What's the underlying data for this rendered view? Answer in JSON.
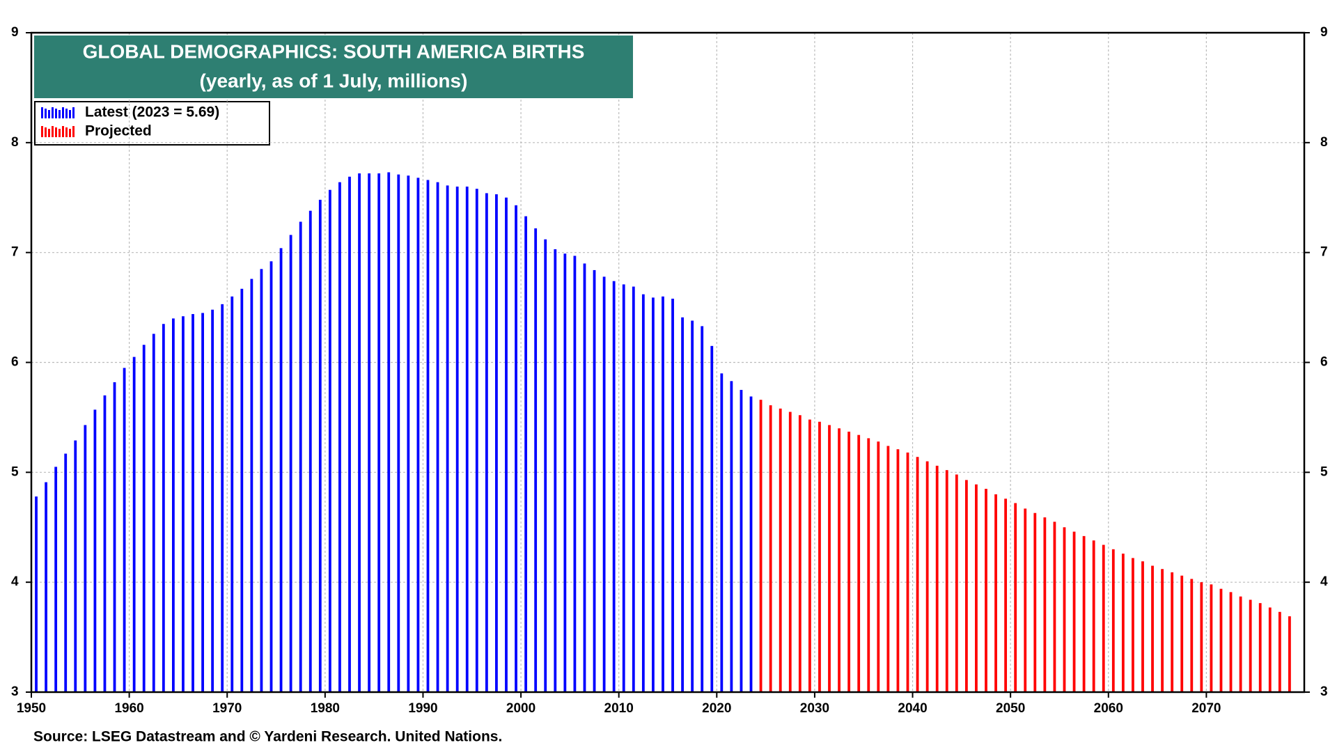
{
  "chart_data": {
    "type": "bar",
    "title": "GLOBAL DEMOGRAPHICS: SOUTH AMERICA BIRTHS",
    "subtitle": "(yearly, as of 1 July, millions)",
    "source": "Source: LSEG Datastream and © Yardeni Research. United Nations.",
    "x": [
      1950,
      1951,
      1952,
      1953,
      1954,
      1955,
      1956,
      1957,
      1958,
      1959,
      1960,
      1961,
      1962,
      1963,
      1964,
      1965,
      1966,
      1967,
      1968,
      1969,
      1970,
      1971,
      1972,
      1973,
      1974,
      1975,
      1976,
      1977,
      1978,
      1979,
      1980,
      1981,
      1982,
      1983,
      1984,
      1985,
      1986,
      1987,
      1988,
      1989,
      1990,
      1991,
      1992,
      1993,
      1994,
      1995,
      1996,
      1997,
      1998,
      1999,
      2000,
      2001,
      2002,
      2003,
      2004,
      2005,
      2006,
      2007,
      2008,
      2009,
      2010,
      2011,
      2012,
      2013,
      2014,
      2015,
      2016,
      2017,
      2018,
      2019,
      2020,
      2021,
      2022,
      2023,
      2024,
      2025,
      2026,
      2027,
      2028,
      2029,
      2030,
      2031,
      2032,
      2033,
      2034,
      2035,
      2036,
      2037,
      2038,
      2039,
      2040,
      2041,
      2042,
      2043,
      2044,
      2045,
      2046,
      2047,
      2048,
      2049,
      2050,
      2051,
      2052,
      2053,
      2054,
      2055,
      2056,
      2057,
      2058,
      2059,
      2060,
      2061,
      2062,
      2063,
      2064,
      2065,
      2066,
      2067,
      2068,
      2069,
      2070,
      2071,
      2072,
      2073,
      2074,
      2075,
      2076,
      2077,
      2078
    ],
    "series": [
      {
        "name": "Latest (2023 = 5.69)",
        "color": "#0000ff",
        "values": [
          4.78,
          4.91,
          5.05,
          5.17,
          5.29,
          5.43,
          5.57,
          5.7,
          5.82,
          5.95,
          6.05,
          6.16,
          6.26,
          6.35,
          6.4,
          6.42,
          6.44,
          6.45,
          6.48,
          6.53,
          6.6,
          6.67,
          6.76,
          6.85,
          6.92,
          7.04,
          7.16,
          7.28,
          7.38,
          7.48,
          7.57,
          7.64,
          7.69,
          7.72,
          7.72,
          7.72,
          7.73,
          7.71,
          7.7,
          7.68,
          7.66,
          7.64,
          7.61,
          7.6,
          7.6,
          7.58,
          7.54,
          7.53,
          7.5,
          7.43,
          7.33,
          7.22,
          7.12,
          7.03,
          6.99,
          6.97,
          6.9,
          6.84,
          6.78,
          6.74,
          6.71,
          6.69,
          6.62,
          6.59,
          6.6,
          6.58,
          6.41,
          6.38,
          6.33,
          6.15,
          5.9,
          5.83,
          5.75,
          5.69,
          null,
          null,
          null,
          null,
          null,
          null,
          null,
          null,
          null,
          null,
          null,
          null,
          null,
          null,
          null,
          null,
          null,
          null,
          null,
          null,
          null,
          null,
          null,
          null,
          null,
          null,
          null,
          null,
          null,
          null,
          null,
          null,
          null,
          null,
          null,
          null,
          null,
          null,
          null,
          null,
          null,
          null,
          null,
          null,
          null,
          null,
          null,
          null,
          null,
          null,
          null,
          null,
          null,
          null,
          null
        ]
      },
      {
        "name": "Projected",
        "color": "#ff0000",
        "values": [
          null,
          null,
          null,
          null,
          null,
          null,
          null,
          null,
          null,
          null,
          null,
          null,
          null,
          null,
          null,
          null,
          null,
          null,
          null,
          null,
          null,
          null,
          null,
          null,
          null,
          null,
          null,
          null,
          null,
          null,
          null,
          null,
          null,
          null,
          null,
          null,
          null,
          null,
          null,
          null,
          null,
          null,
          null,
          null,
          null,
          null,
          null,
          null,
          null,
          null,
          null,
          null,
          null,
          null,
          null,
          null,
          null,
          null,
          null,
          null,
          null,
          null,
          null,
          null,
          null,
          null,
          null,
          null,
          null,
          null,
          null,
          null,
          null,
          null,
          5.66,
          5.61,
          5.58,
          5.55,
          5.52,
          5.48,
          5.46,
          5.43,
          5.4,
          5.37,
          5.34,
          5.31,
          5.28,
          5.24,
          5.21,
          5.18,
          5.14,
          5.1,
          5.06,
          5.02,
          4.98,
          4.93,
          4.89,
          4.85,
          4.8,
          4.76,
          4.72,
          4.67,
          4.63,
          4.59,
          4.55,
          4.5,
          4.46,
          4.42,
          4.38,
          4.34,
          4.3,
          4.26,
          4.22,
          4.19,
          4.15,
          4.12,
          4.09,
          4.06,
          4.03,
          4.0,
          3.98,
          3.94,
          3.91,
          3.87,
          3.84,
          3.81,
          3.77,
          3.73,
          3.69
        ]
      }
    ],
    "xlim": [
      1950,
      2080
    ],
    "xticks": [
      1950,
      1960,
      1970,
      1980,
      1990,
      2000,
      2010,
      2020,
      2030,
      2040,
      2050,
      2060,
      2070
    ],
    "ylim": [
      3,
      9
    ],
    "yticks": [
      3,
      4,
      5,
      6,
      7,
      8,
      9
    ],
    "grid": true,
    "title_box_color": "#2e7f72",
    "legend_position": "upper-left"
  }
}
